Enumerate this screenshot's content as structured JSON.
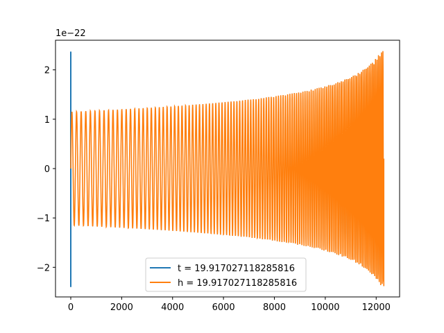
{
  "chart_data": {
    "type": "line",
    "title": "",
    "xlabel": "",
    "ylabel": "",
    "offset_text": "1e−22",
    "xlim": [
      -600,
      12920
    ],
    "ylim": [
      -2.6,
      2.6
    ],
    "xticks": [
      0,
      2000,
      4000,
      6000,
      8000,
      10000,
      12000
    ],
    "xtick_labels": [
      "0",
      "2000",
      "4000",
      "6000",
      "8000",
      "10000",
      "12000"
    ],
    "yticks": [
      -2,
      -1,
      0,
      1,
      2
    ],
    "ytick_labels": [
      "−2",
      "−1",
      "0",
      "1",
      "2"
    ],
    "grid": false,
    "legend_position": "lower-center",
    "series": [
      {
        "name": "t = 19.917027118285816",
        "color": "#1f77b4",
        "description_points": {
          "x_start": 0,
          "x_end": 12300,
          "initial_spike_max": 2.37,
          "initial_spike_min": -2.4,
          "start_amplitude": 1.15,
          "end_amplitude": 2.38
        }
      },
      {
        "name": "h = 19.917027118285816",
        "color": "#ff7f0e",
        "description_points": {
          "x_start": 0,
          "x_end": 12300,
          "start_amplitude": 1.15,
          "end_amplitude": 2.38
        }
      }
    ]
  }
}
